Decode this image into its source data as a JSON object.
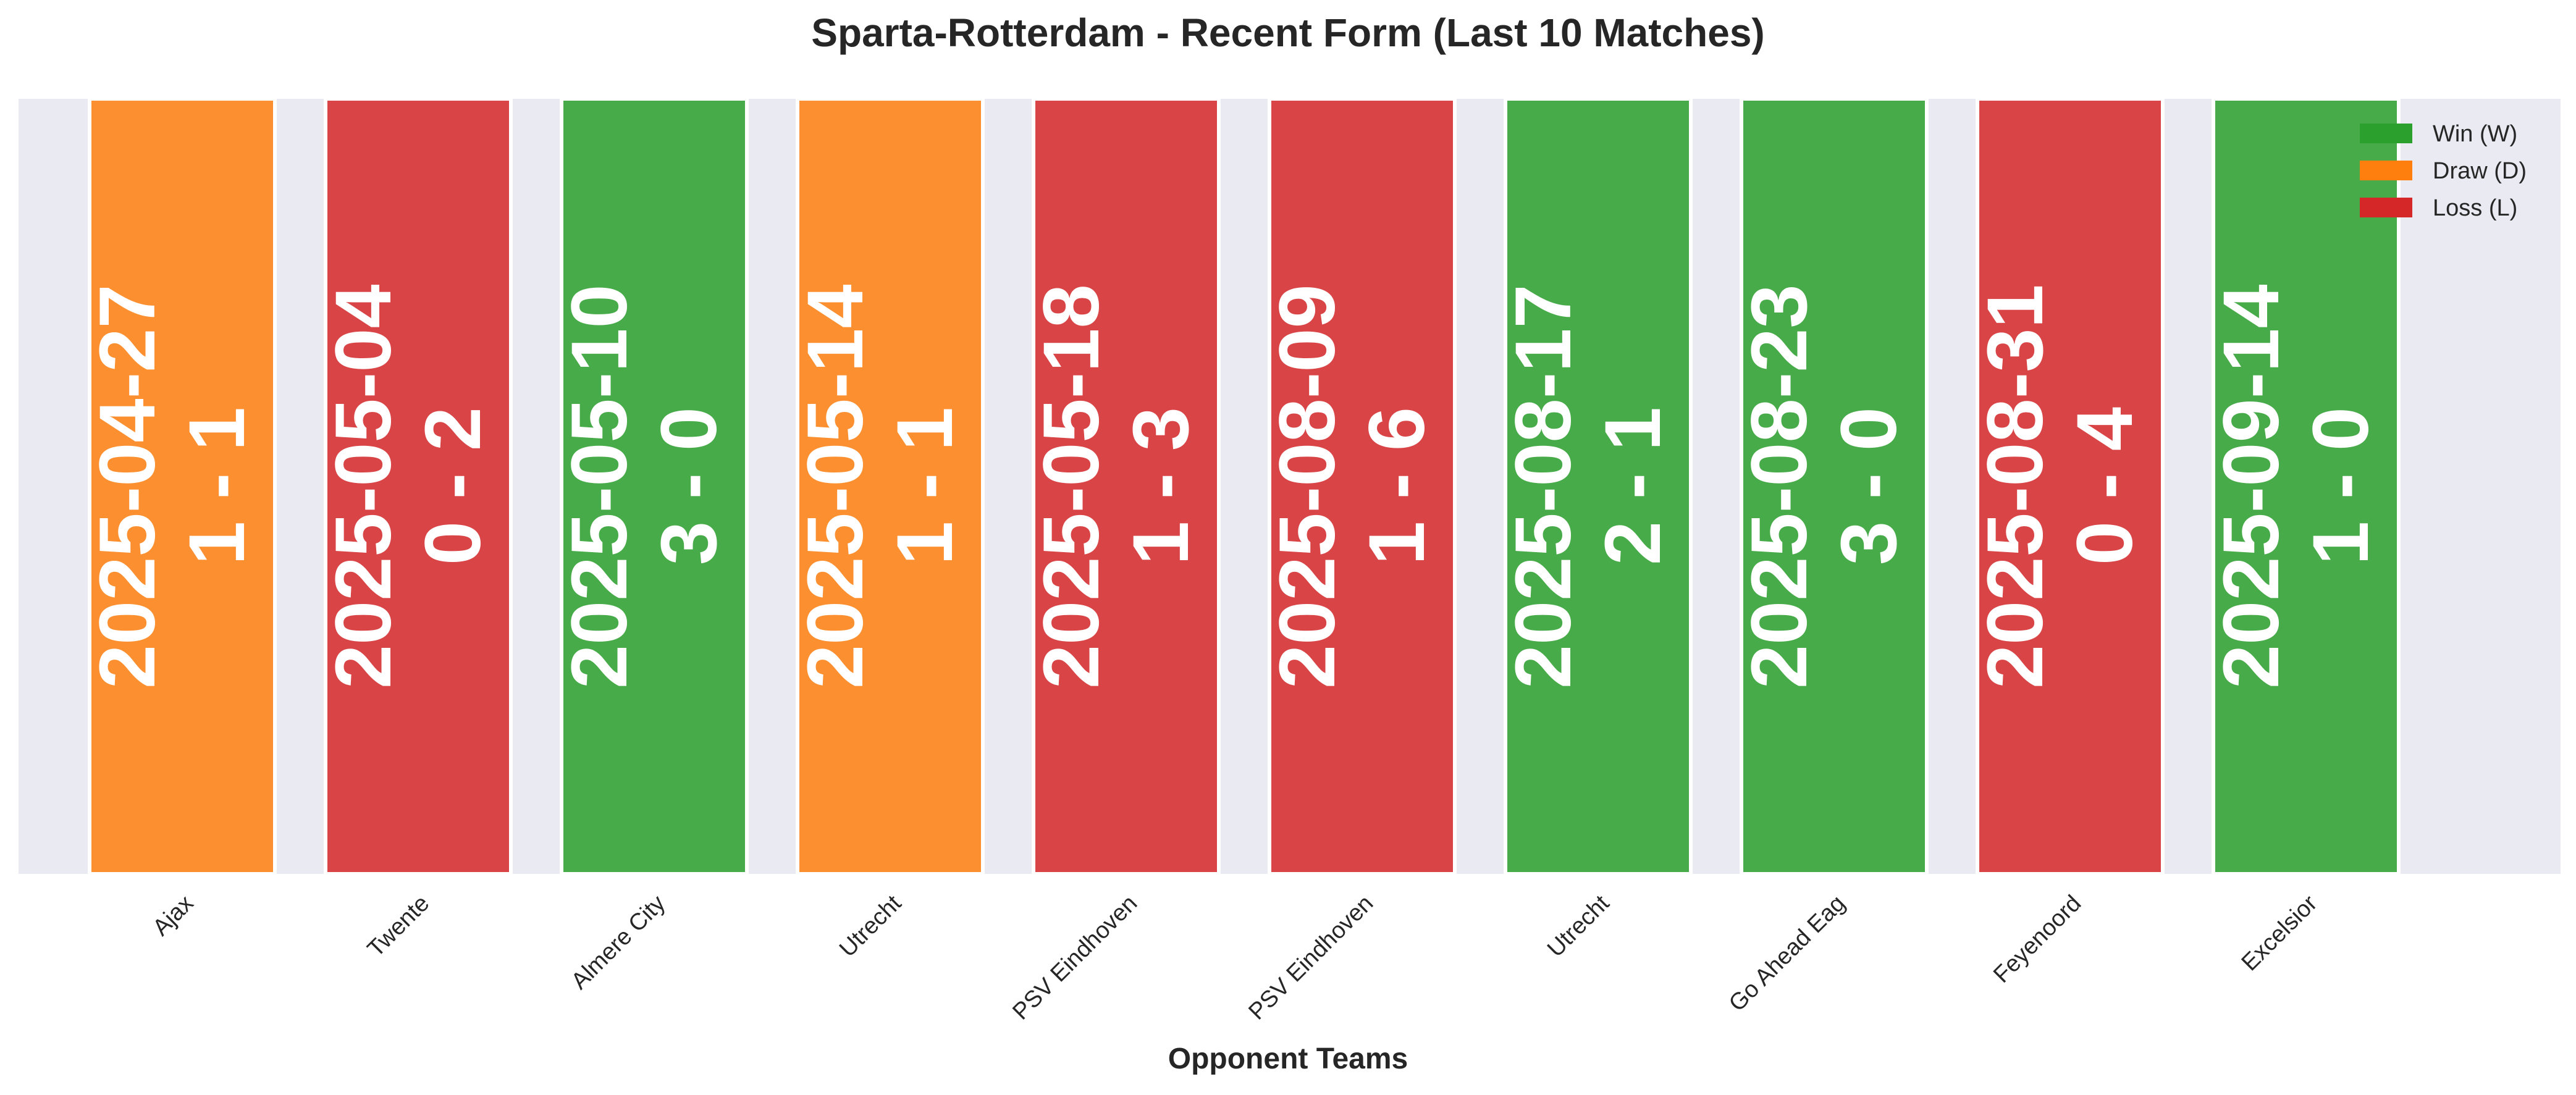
{
  "chart_data": {
    "type": "bar",
    "title": "Sparta-Rotterdam - Recent Form (Last 10 Matches)",
    "xlabel": "Opponent Teams",
    "ylabel": "",
    "grid": false,
    "legend_position": "top-right",
    "categories": [
      "Ajax",
      "Twente",
      "Almere City",
      "Utrecht",
      "PSV Eindhoven",
      "PSV Eindhoven",
      "Utrecht",
      "Go Ahead Eag",
      "Feyenoord",
      "Excelsior"
    ],
    "values": [
      1,
      1,
      1,
      1,
      1,
      1,
      1,
      1,
      1,
      1
    ],
    "ylim": [
      0,
      1
    ],
    "matches": [
      {
        "opponent": "Ajax",
        "date": "2025-04-27",
        "score": "1 - 1",
        "result": "D"
      },
      {
        "opponent": "Twente",
        "date": "2025-05-04",
        "score": "0 - 2",
        "result": "L"
      },
      {
        "opponent": "Almere City",
        "date": "2025-05-10",
        "score": "3 - 0",
        "result": "W"
      },
      {
        "opponent": "Utrecht",
        "date": "2025-05-14",
        "score": "1 - 1",
        "result": "D"
      },
      {
        "opponent": "PSV Eindhoven",
        "date": "2025-05-18",
        "score": "1 - 3",
        "result": "L"
      },
      {
        "opponent": "PSV Eindhoven",
        "date": "2025-08-09",
        "score": "1 - 6",
        "result": "L"
      },
      {
        "opponent": "Utrecht",
        "date": "2025-08-17",
        "score": "2 - 1",
        "result": "W"
      },
      {
        "opponent": "Go Ahead Eag",
        "date": "2025-08-23",
        "score": "3 - 0",
        "result": "W"
      },
      {
        "opponent": "Feyenoord",
        "date": "2025-08-31",
        "score": "0 - 4",
        "result": "L"
      },
      {
        "opponent": "Excelsior",
        "date": "2025-09-14",
        "score": "1 - 0",
        "result": "W"
      }
    ],
    "legend": [
      {
        "key": "W",
        "label": "Win (W)",
        "color": "#2ca02c"
      },
      {
        "key": "D",
        "label": "Draw (D)",
        "color": "#ff7f0e"
      },
      {
        "key": "L",
        "label": "Loss (L)",
        "color": "#d62728"
      }
    ],
    "colors": {
      "plot_background": "#eaeaf2",
      "label_color": "#ffffff"
    }
  }
}
